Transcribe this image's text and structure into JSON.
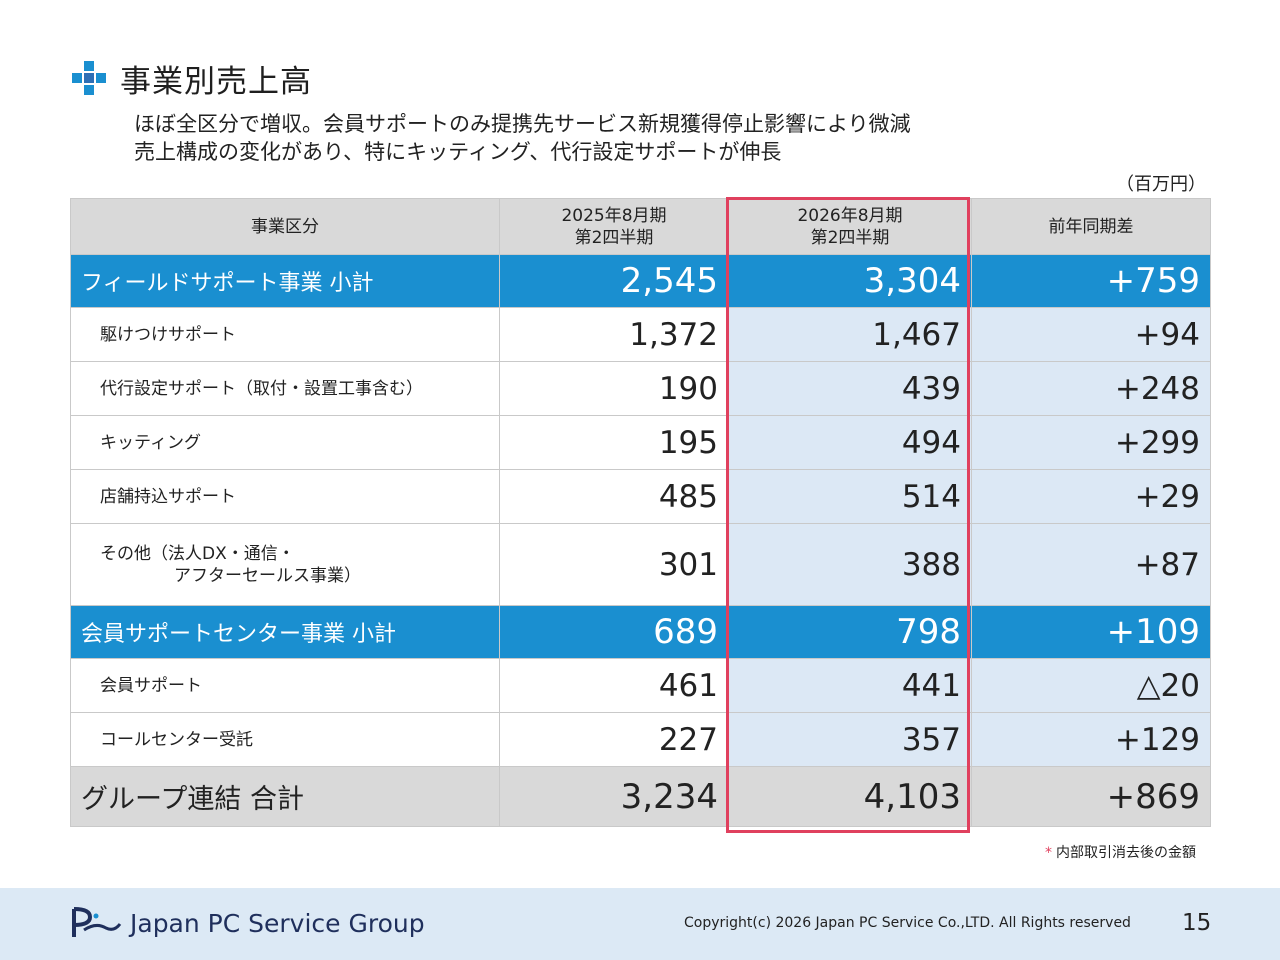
{
  "title": "事業別売上高",
  "subtitle": [
    "ほぼ全区分で増収。会員サポートのみ提携先サービス新規獲得停止影響により微減",
    "売上構成の変化があり、特にキッティング、代行設定サポートが伸長"
  ],
  "unit": "（百万円）",
  "headers": {
    "category": "事業区分",
    "prev_line1": "2025年8月期",
    "prev_line2": "第2四半期",
    "curr_line1": "2026年8月期",
    "curr_line2": "第2四半期",
    "diff": "前年同期差"
  },
  "field": {
    "label": "フィールドサポート事業 小計",
    "prev": "2,545",
    "curr": "3,304",
    "diff": "+759",
    "rows": [
      {
        "label": "駆けつけサポート",
        "prev": "1,372",
        "curr": "1,467",
        "diff": "+94"
      },
      {
        "label": "代行設定サポート（取付・設置工事含む）",
        "prev": "190",
        "curr": "439",
        "diff": "+248"
      },
      {
        "label": "キッティング",
        "prev": "195",
        "curr": "494",
        "diff": "+299"
      },
      {
        "label": "店舗持込サポート",
        "prev": "485",
        "curr": "514",
        "diff": "+29"
      }
    ],
    "other": {
      "label_line1": "その他（法人DX・通信・",
      "label_line2": "アフターセールス事業）",
      "prev": "301",
      "curr": "388",
      "diff": "+87"
    }
  },
  "member": {
    "label": "会員サポートセンター事業 小計",
    "prev": "689",
    "curr": "798",
    "diff": "+109",
    "rows": [
      {
        "label": "会員サポート",
        "prev": "461",
        "curr": "441",
        "diff": "△20"
      },
      {
        "label": "コールセンター受託",
        "prev": "227",
        "curr": "357",
        "diff": "+129"
      }
    ]
  },
  "total": {
    "label": "グループ連結 合計",
    "prev": "3,234",
    "curr": "4,103",
    "diff": "+869"
  },
  "footnote_mark": "*",
  "footnote": "内部取引消去後の金額",
  "footer": {
    "company": "Japan PC Service Group",
    "copyright": "Copyright(c) 2026 Japan PC Service Co.,LTD. All Rights reserved",
    "page": "15"
  },
  "colors": {
    "accent_blue": "#1a8fd0",
    "highlight_red": "#e0405e",
    "light_blue": "#dce8f5",
    "header_gray": "#d9d9d9"
  }
}
